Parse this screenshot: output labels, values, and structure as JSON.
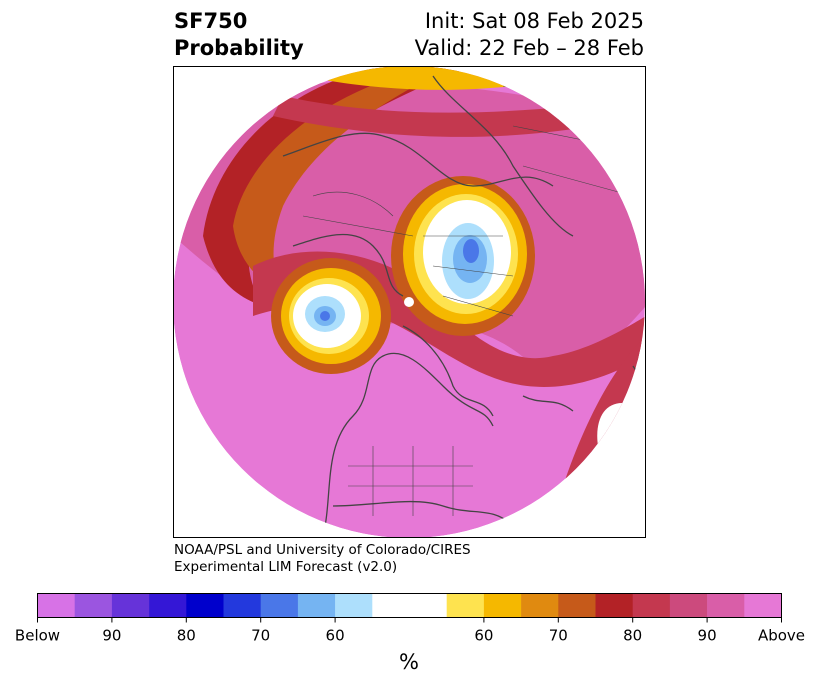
{
  "header": {
    "variable": "SF750",
    "product": "Probability",
    "init": "Init: Sat 08 Feb 2025",
    "valid": "Valid: 22 Feb – 28 Feb"
  },
  "credits": {
    "line1": "NOAA/PSL and University of Colorado/CIRES",
    "line2": "Experimental LIM Forecast (v2.0)"
  },
  "colorbar": {
    "unit": "%",
    "colors": [
      "#d772e6",
      "#9b55e0",
      "#6633d9",
      "#3417d6",
      "#0000cc",
      "#2339dd",
      "#4a77e8",
      "#75b4f2",
      "#addffc",
      "#ffffff",
      "#ffffff",
      "#fee34f",
      "#f5b800",
      "#e08a10",
      "#c65a1a",
      "#b32226",
      "#c4384f",
      "#cc4a7d",
      "#d95ea8",
      "#e678d6"
    ],
    "tick_labels": [
      {
        "label": "Below",
        "index": 0
      },
      {
        "label": "90",
        "index": 2
      },
      {
        "label": "80",
        "index": 4
      },
      {
        "label": "70",
        "index": 6
      },
      {
        "label": "60",
        "index": 8
      },
      {
        "label": "60",
        "index": 12
      },
      {
        "label": "70",
        "index": 14
      },
      {
        "label": "80",
        "index": 16
      },
      {
        "label": "90",
        "index": 18
      },
      {
        "label": "Above",
        "index": 20
      }
    ]
  },
  "map_colors": {
    "above_max": "#e678d6",
    "above_90": "#d95ea8",
    "above_85": "#cc4a7d",
    "above_80": "#c4384f",
    "above_75": "#b32226",
    "above_70": "#c65a1a",
    "above_65": "#e08a10",
    "above_60": "#f5b800",
    "above_55": "#fee34f",
    "neutral": "#ffffff",
    "below_55": "#addffc",
    "below_60": "#75b4f2",
    "below_65": "#4a77e8",
    "coastline": "#444444"
  }
}
